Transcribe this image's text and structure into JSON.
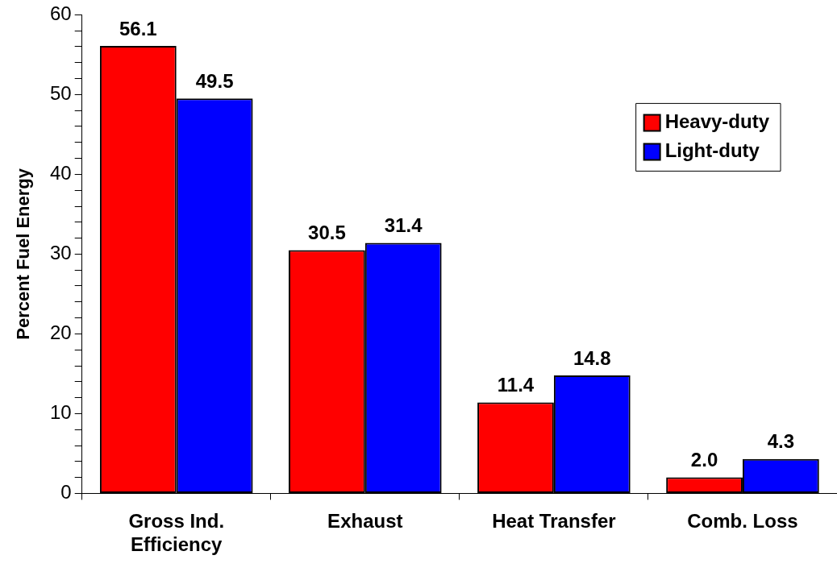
{
  "chart_data": {
    "type": "bar",
    "ylabel": "Percent Fuel Energy",
    "categories": [
      "Gross Ind. Efficiency",
      "Exhaust",
      "Heat Transfer",
      "Comb. Loss"
    ],
    "series": [
      {
        "name": "Heavy-duty",
        "color": "#ff0000",
        "values": [
          56.1,
          30.5,
          11.4,
          2.0
        ],
        "value_labels": [
          "56.1",
          "30.5",
          "11.4",
          "2.0"
        ]
      },
      {
        "name": "Light-duty",
        "color": "#0000ff",
        "values": [
          49.5,
          31.4,
          14.8,
          4.3
        ],
        "value_labels": [
          "49.5",
          "31.4",
          "14.8",
          "4.3"
        ]
      }
    ],
    "ylim": [
      0,
      60
    ],
    "yticks": [
      0,
      {
        "value": 2,
        "label": null
      },
      {
        "value": 4,
        "label": null
      },
      {
        "value": 6,
        "label": null
      },
      {
        "value": 8,
        "label": null
      },
      10,
      {
        "value": 12,
        "label": null
      },
      {
        "value": 14,
        "label": null
      },
      {
        "value": 16,
        "label": null
      },
      {
        "value": 18,
        "label": null
      },
      20,
      {
        "value": 22,
        "label": null
      },
      {
        "value": 24,
        "label": null
      },
      {
        "value": 26,
        "label": null
      },
      {
        "value": 28,
        "label": null
      },
      30,
      {
        "value": 32,
        "label": null
      },
      {
        "value": 34,
        "label": null
      },
      {
        "value": 36,
        "label": null
      },
      {
        "value": 38,
        "label": null
      },
      40,
      {
        "value": 42,
        "label": null
      },
      {
        "value": 44,
        "label": null
      },
      {
        "value": 46,
        "label": null
      },
      {
        "value": 48,
        "label": null
      },
      50,
      {
        "value": 52,
        "label": null
      },
      {
        "value": 54,
        "label": null
      },
      {
        "value": 56,
        "label": null
      },
      {
        "value": 58,
        "label": null
      },
      60
    ],
    "legend": "top right",
    "grid": false
  }
}
